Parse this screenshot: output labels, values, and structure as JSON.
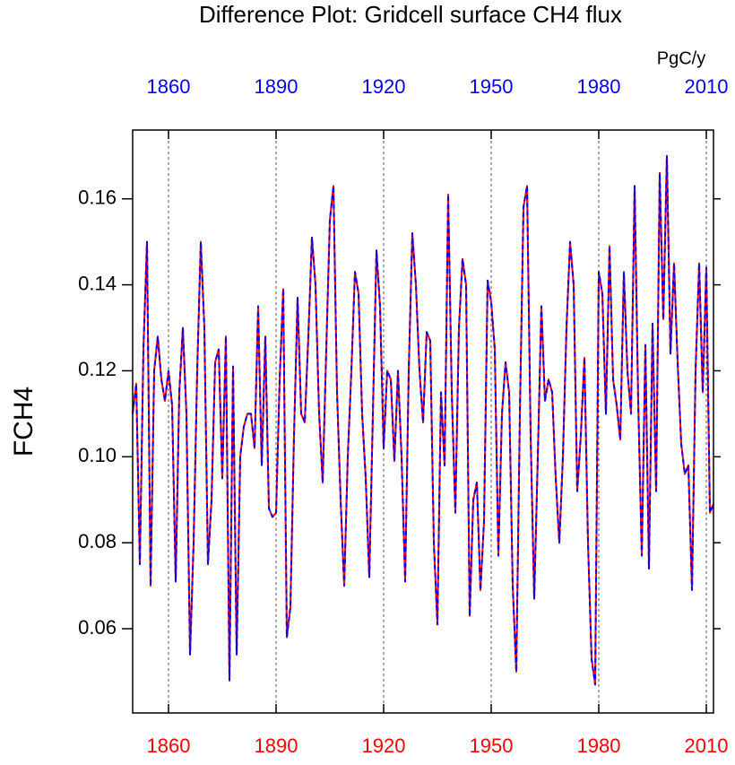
{
  "chart_data": {
    "type": "line",
    "title": "Difference Plot: Gridcell surface CH4 flux",
    "units_label": "PgC/y",
    "y_label": "FCH4",
    "x": [
      1850,
      1851,
      1852,
      1853,
      1854,
      1855,
      1856,
      1857,
      1858,
      1859,
      1860,
      1861,
      1862,
      1863,
      1864,
      1865,
      1866,
      1867,
      1868,
      1869,
      1870,
      1871,
      1872,
      1873,
      1874,
      1875,
      1876,
      1877,
      1878,
      1879,
      1880,
      1881,
      1882,
      1883,
      1884,
      1885,
      1886,
      1887,
      1888,
      1889,
      1890,
      1891,
      1892,
      1893,
      1894,
      1895,
      1896,
      1897,
      1898,
      1899,
      1900,
      1901,
      1902,
      1903,
      1904,
      1905,
      1906,
      1907,
      1908,
      1909,
      1910,
      1911,
      1912,
      1913,
      1914,
      1915,
      1916,
      1917,
      1918,
      1919,
      1920,
      1921,
      1922,
      1923,
      1924,
      1925,
      1926,
      1927,
      1928,
      1929,
      1930,
      1931,
      1932,
      1933,
      1934,
      1935,
      1936,
      1937,
      1938,
      1939,
      1940,
      1941,
      1942,
      1943,
      1944,
      1945,
      1946,
      1947,
      1948,
      1949,
      1950,
      1951,
      1952,
      1953,
      1954,
      1955,
      1956,
      1957,
      1958,
      1959,
      1960,
      1961,
      1962,
      1963,
      1964,
      1965,
      1966,
      1967,
      1968,
      1969,
      1970,
      1971,
      1972,
      1973,
      1974,
      1975,
      1976,
      1977,
      1978,
      1979,
      1980,
      1981,
      1982,
      1983,
      1984,
      1985,
      1986,
      1987,
      1988,
      1989,
      1990,
      1991,
      1992,
      1993,
      1994,
      1995,
      1996,
      1997,
      1998,
      1999,
      2000,
      2001,
      2002,
      2003,
      2004,
      2005,
      2006,
      2007,
      2008,
      2009,
      2010,
      2011,
      2012
    ],
    "series": [
      {
        "color": "#ff0000",
        "dash": false,
        "values": [
          0.11,
          0.117,
          0.075,
          0.125,
          0.15,
          0.07,
          0.12,
          0.128,
          0.118,
          0.113,
          0.12,
          0.112,
          0.071,
          0.115,
          0.13,
          0.11,
          0.054,
          0.08,
          0.12,
          0.15,
          0.13,
          0.075,
          0.09,
          0.122,
          0.125,
          0.095,
          0.128,
          0.048,
          0.121,
          0.054,
          0.1,
          0.107,
          0.11,
          0.11,
          0.102,
          0.135,
          0.098,
          0.128,
          0.088,
          0.086,
          0.087,
          0.118,
          0.139,
          0.058,
          0.065,
          0.105,
          0.137,
          0.11,
          0.108,
          0.128,
          0.151,
          0.14,
          0.11,
          0.094,
          0.125,
          0.155,
          0.163,
          0.115,
          0.09,
          0.07,
          0.1,
          0.12,
          0.143,
          0.138,
          0.11,
          0.095,
          0.072,
          0.11,
          0.148,
          0.135,
          0.102,
          0.12,
          0.118,
          0.099,
          0.12,
          0.1,
          0.071,
          0.12,
          0.152,
          0.14,
          0.12,
          0.108,
          0.129,
          0.127,
          0.08,
          0.061,
          0.115,
          0.098,
          0.161,
          0.115,
          0.087,
          0.13,
          0.146,
          0.14,
          0.063,
          0.09,
          0.094,
          0.069,
          0.085,
          0.141,
          0.136,
          0.125,
          0.077,
          0.11,
          0.122,
          0.115,
          0.07,
          0.05,
          0.11,
          0.158,
          0.163,
          0.105,
          0.067,
          0.1,
          0.135,
          0.113,
          0.118,
          0.115,
          0.095,
          0.08,
          0.1,
          0.13,
          0.15,
          0.14,
          0.092,
          0.105,
          0.123,
          0.08,
          0.053,
          0.047,
          0.143,
          0.138,
          0.11,
          0.149,
          0.118,
          0.112,
          0.104,
          0.143,
          0.12,
          0.11,
          0.163,
          0.113,
          0.077,
          0.126,
          0.074,
          0.131,
          0.092,
          0.166,
          0.132,
          0.17,
          0.124,
          0.145,
          0.122,
          0.103,
          0.096,
          0.098,
          0.069,
          0.12,
          0.145,
          0.115,
          0.144,
          0.087,
          0.089
        ]
      },
      {
        "color": "#0000ff",
        "dash": true,
        "values": [
          0.11,
          0.117,
          0.075,
          0.125,
          0.15,
          0.07,
          0.12,
          0.128,
          0.118,
          0.113,
          0.12,
          0.112,
          0.071,
          0.115,
          0.13,
          0.11,
          0.054,
          0.08,
          0.12,
          0.15,
          0.13,
          0.075,
          0.09,
          0.122,
          0.125,
          0.095,
          0.128,
          0.048,
          0.121,
          0.054,
          0.1,
          0.107,
          0.11,
          0.11,
          0.102,
          0.135,
          0.098,
          0.128,
          0.088,
          0.086,
          0.087,
          0.118,
          0.139,
          0.058,
          0.065,
          0.105,
          0.137,
          0.11,
          0.108,
          0.128,
          0.151,
          0.14,
          0.11,
          0.094,
          0.125,
          0.155,
          0.163,
          0.115,
          0.09,
          0.07,
          0.1,
          0.12,
          0.143,
          0.138,
          0.11,
          0.095,
          0.072,
          0.11,
          0.148,
          0.135,
          0.102,
          0.12,
          0.118,
          0.099,
          0.12,
          0.1,
          0.071,
          0.12,
          0.152,
          0.14,
          0.12,
          0.108,
          0.129,
          0.127,
          0.08,
          0.061,
          0.115,
          0.098,
          0.161,
          0.115,
          0.087,
          0.13,
          0.146,
          0.14,
          0.063,
          0.09,
          0.094,
          0.069,
          0.085,
          0.141,
          0.136,
          0.125,
          0.077,
          0.11,
          0.122,
          0.115,
          0.07,
          0.05,
          0.11,
          0.158,
          0.163,
          0.105,
          0.067,
          0.1,
          0.135,
          0.113,
          0.118,
          0.115,
          0.095,
          0.08,
          0.1,
          0.13,
          0.15,
          0.14,
          0.092,
          0.105,
          0.123,
          0.08,
          0.053,
          0.047,
          0.143,
          0.138,
          0.11,
          0.149,
          0.118,
          0.112,
          0.104,
          0.143,
          0.12,
          0.11,
          0.163,
          0.113,
          0.077,
          0.126,
          0.074,
          0.131,
          0.092,
          0.166,
          0.132,
          0.17,
          0.124,
          0.145,
          0.122,
          0.103,
          0.096,
          0.098,
          0.069,
          0.12,
          0.145,
          0.115,
          0.144,
          0.087,
          0.089
        ]
      }
    ],
    "xlim": [
      1850,
      2012
    ],
    "ylim": [
      0.0404,
      0.176
    ],
    "xticks": [
      1860,
      1890,
      1920,
      1950,
      1980,
      2010
    ],
    "yticks": [
      {
        "value": 0.06,
        "label": "0.06"
      },
      {
        "value": 0.08,
        "label": "0.08"
      },
      {
        "value": 0.1,
        "label": "0.10"
      },
      {
        "value": 0.12,
        "label": "0.12"
      },
      {
        "value": 0.14,
        "label": "0.14"
      },
      {
        "value": 0.16,
        "label": "0.16"
      }
    ],
    "bottom_tick_color": "#ff0000",
    "top_tick_color": "#0000ff",
    "grid": "x"
  }
}
